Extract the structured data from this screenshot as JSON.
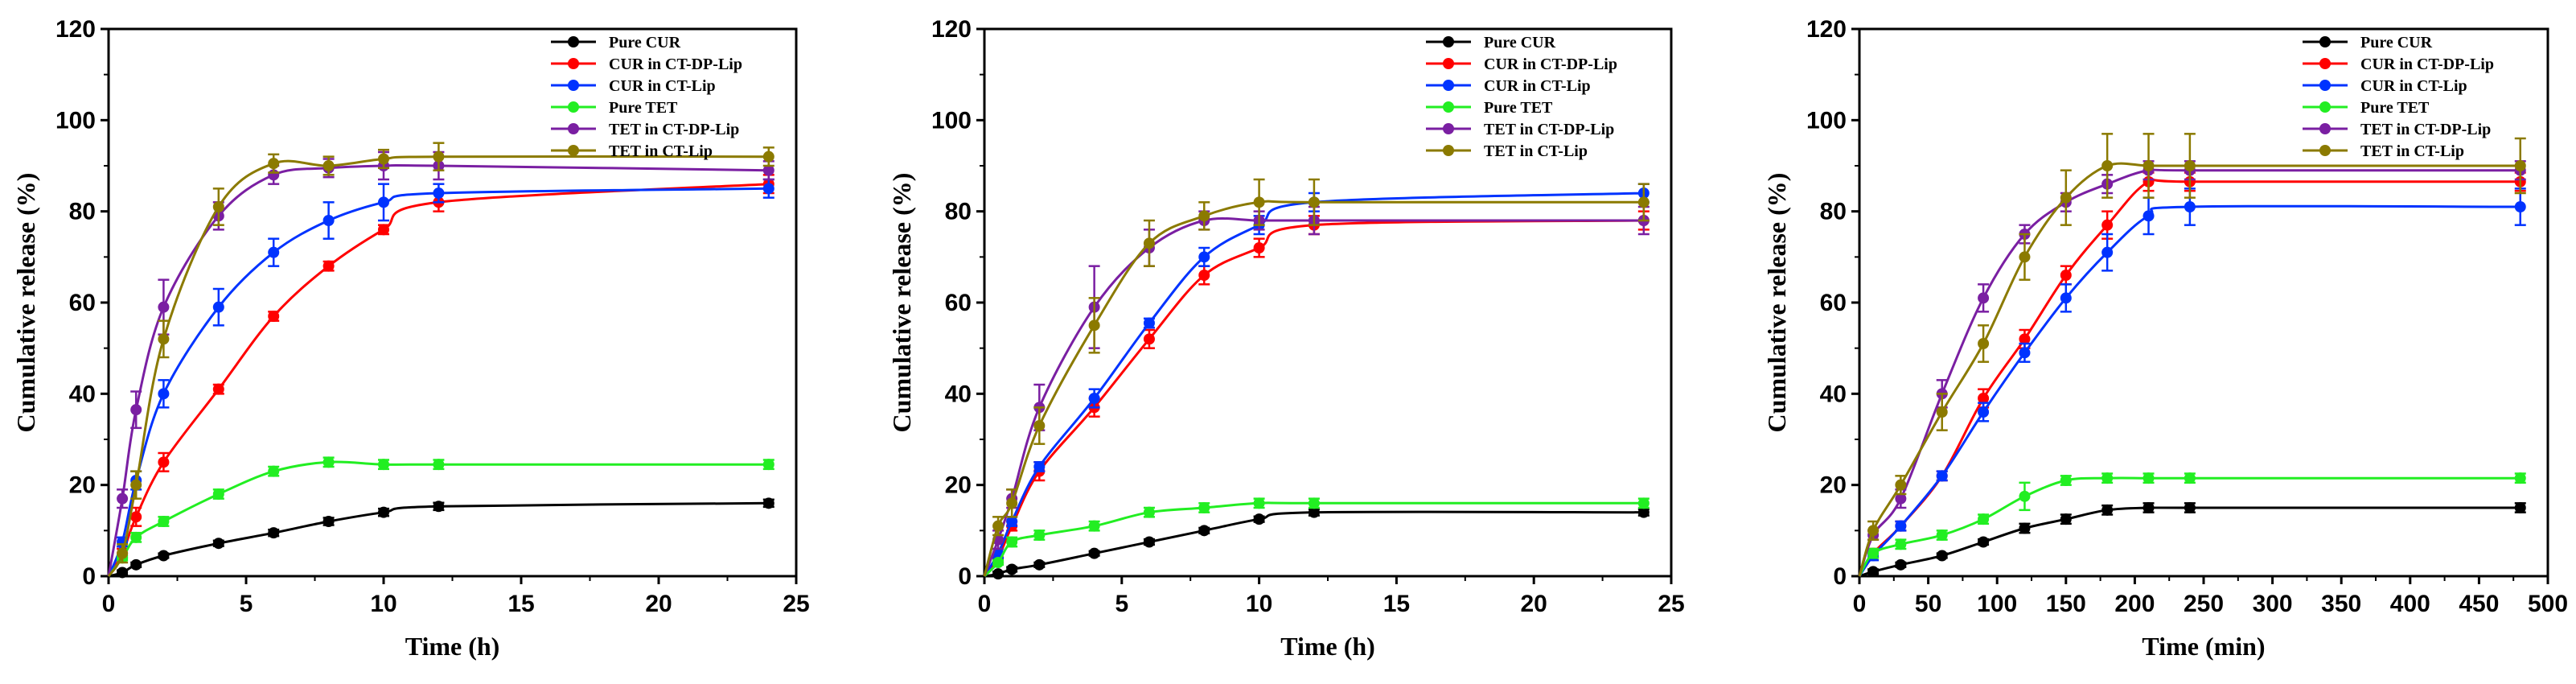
{
  "chart_data": [
    {
      "type": "line",
      "xlabel": "Time (h)",
      "ylabel": "Cumulative release (%)",
      "xlim": [
        0,
        25
      ],
      "ylim": [
        0,
        120
      ],
      "xticks": [
        0,
        5,
        10,
        15,
        20,
        25
      ],
      "xtick_labels": [
        "0",
        "5",
        "10",
        "15",
        "20",
        "25"
      ],
      "yticks": [
        0,
        20,
        40,
        60,
        80,
        100,
        120
      ],
      "ytick_labels": [
        "0",
        "20",
        "40",
        "60",
        "80",
        "100",
        "120"
      ],
      "legend_position": "top-right",
      "x": [
        0.5,
        1,
        2,
        4,
        6,
        8,
        10,
        12,
        24
      ],
      "series": [
        {
          "name": "Pure CUR",
          "color": "#000000",
          "values": [
            0.8,
            2.5,
            4.5,
            7.2,
            9.5,
            12,
            14,
            15.3,
            16
          ],
          "errors": [
            0.5,
            0.5,
            0.5,
            0.6,
            0.7,
            0.8,
            0.8,
            0.8,
            0.8
          ]
        },
        {
          "name": "CUR in CT-DP-Lip",
          "color": "#ff0000",
          "values": [
            5,
            13,
            25,
            41,
            57,
            68,
            76,
            82,
            86
          ],
          "errors": [
            1,
            2,
            2,
            1,
            1,
            1,
            1,
            2,
            2
          ]
        },
        {
          "name": "CUR in CT-Lip",
          "color": "#0033ff",
          "values": [
            7.5,
            21,
            40,
            59,
            71,
            78,
            82,
            84,
            85
          ],
          "errors": [
            1,
            2,
            3,
            4,
            3,
            4,
            4,
            2,
            2
          ]
        },
        {
          "name": "Pure TET",
          "color": "#22ee22",
          "values": [
            4,
            8.5,
            12,
            18,
            23,
            25,
            24.5,
            24.5,
            24.5
          ],
          "errors": [
            0.5,
            1,
            1,
            1,
            1,
            1,
            1,
            1,
            1
          ]
        },
        {
          "name": "TET in CT-DP-Lip",
          "color": "#7a1fa2",
          "values": [
            17,
            36.5,
            59,
            79,
            88,
            89.5,
            90,
            90,
            89
          ],
          "errors": [
            2,
            4,
            6,
            3,
            2,
            2,
            3,
            3,
            2
          ]
        },
        {
          "name": "TET in CT-Lip",
          "color": "#8b7a00",
          "values": [
            5,
            20,
            52,
            81,
            90.5,
            90,
            91.5,
            92,
            92
          ],
          "errors": [
            2,
            3,
            4,
            4,
            2,
            2,
            2,
            3,
            2
          ]
        }
      ]
    },
    {
      "type": "line",
      "xlabel": "Time (h)",
      "ylabel": "Cumulative release (%)",
      "xlim": [
        0,
        25
      ],
      "ylim": [
        0,
        120
      ],
      "xticks": [
        0,
        5,
        10,
        15,
        20,
        25
      ],
      "xtick_labels": [
        "0",
        "5",
        "10",
        "15",
        "20",
        "25"
      ],
      "yticks": [
        0,
        20,
        40,
        60,
        80,
        100,
        120
      ],
      "ytick_labels": [
        "0",
        "20",
        "40",
        "60",
        "80",
        "100",
        "120"
      ],
      "legend_position": "top-right",
      "x": [
        0.5,
        1,
        2,
        4,
        6,
        8,
        10,
        12,
        24
      ],
      "series": [
        {
          "name": "Pure CUR",
          "color": "#000000",
          "values": [
            0.5,
            1.5,
            2.5,
            5,
            7.5,
            10,
            12.5,
            14,
            14
          ],
          "errors": [
            0.5,
            0.5,
            0.5,
            0.5,
            0.6,
            0.6,
            0.6,
            0.7,
            0.7
          ]
        },
        {
          "name": "CUR in CT-DP-Lip",
          "color": "#ff0000",
          "values": [
            4,
            11,
            23,
            37,
            52,
            66,
            72,
            77,
            78
          ],
          "errors": [
            1,
            1,
            2,
            2,
            2,
            2,
            2,
            2,
            2
          ]
        },
        {
          "name": "CUR in CT-Lip",
          "color": "#0033ff",
          "values": [
            5,
            12,
            24,
            39,
            55.5,
            70,
            77,
            82,
            84
          ],
          "errors": [
            1,
            1,
            1,
            2,
            1,
            2,
            2,
            2,
            2
          ]
        },
        {
          "name": "Pure TET",
          "color": "#22ee22",
          "values": [
            3,
            7.5,
            9,
            11,
            14,
            15,
            16,
            16,
            16
          ],
          "errors": [
            0.5,
            1,
            1,
            1,
            1,
            1,
            1,
            1,
            1
          ]
        },
        {
          "name": "TET in CT-DP-Lip",
          "color": "#7a1fa2",
          "values": [
            8,
            17,
            37,
            59,
            72,
            78,
            78,
            78,
            78
          ],
          "errors": [
            2,
            2,
            5,
            9,
            4,
            2,
            2,
            3,
            3
          ]
        },
        {
          "name": "TET in CT-Lip",
          "color": "#8b7a00",
          "values": [
            11,
            16,
            33,
            55,
            73,
            79,
            82,
            82,
            82
          ],
          "errors": [
            2,
            3,
            4,
            6,
            5,
            3,
            5,
            5,
            4
          ]
        }
      ]
    },
    {
      "type": "line",
      "xlabel": "Time (min)",
      "ylabel": "Cumulative release (%)",
      "xlim": [
        0,
        500
      ],
      "ylim": [
        0,
        120
      ],
      "xticks": [
        0,
        50,
        100,
        150,
        200,
        250,
        300,
        350,
        400,
        450,
        500
      ],
      "xtick_labels": [
        "0",
        "50",
        "100",
        "150",
        "200",
        "250",
        "300",
        "350",
        "400",
        "450",
        "500"
      ],
      "yticks": [
        0,
        20,
        40,
        60,
        80,
        100,
        120
      ],
      "ytick_labels": [
        "0",
        "20",
        "40",
        "60",
        "80",
        "100",
        "120"
      ],
      "legend_position": "top-right",
      "x": [
        10,
        30,
        60,
        90,
        120,
        150,
        180,
        210,
        240,
        480
      ],
      "series": [
        {
          "name": "Pure CUR",
          "color": "#000000",
          "values": [
            1,
            2.5,
            4.5,
            7.5,
            10.5,
            12.5,
            14.5,
            15,
            15,
            15
          ],
          "errors": [
            0.5,
            0.5,
            0.5,
            0.6,
            1,
            1,
            1,
            1,
            1,
            1
          ]
        },
        {
          "name": "CUR in CT-DP-Lip",
          "color": "#ff0000",
          "values": [
            5,
            11,
            22,
            39,
            52,
            66,
            77,
            86.5,
            86.5,
            86.5
          ],
          "errors": [
            1,
            1,
            1,
            2,
            2,
            2,
            3,
            2,
            2,
            2
          ]
        },
        {
          "name": "CUR in CT-Lip",
          "color": "#0033ff",
          "values": [
            4.5,
            11,
            22,
            36,
            49,
            61,
            71,
            79,
            81,
            81
          ],
          "errors": [
            1,
            1,
            1,
            2,
            2,
            3,
            4,
            4,
            4,
            4
          ]
        },
        {
          "name": "Pure TET",
          "color": "#22ee22",
          "values": [
            5,
            7,
            9,
            12.5,
            17.5,
            21,
            21.5,
            21.5,
            21.5,
            21.5
          ],
          "errors": [
            1,
            1,
            1,
            1,
            3,
            1,
            1,
            1,
            1,
            1
          ]
        },
        {
          "name": "TET in CT-DP-Lip",
          "color": "#7a1fa2",
          "values": [
            9,
            17,
            40,
            61,
            75,
            82,
            86,
            89,
            89,
            89
          ],
          "errors": [
            1,
            2,
            3,
            3,
            2,
            2,
            2,
            2,
            2,
            2
          ]
        },
        {
          "name": "TET in CT-Lip",
          "color": "#8b7a00",
          "values": [
            10,
            20,
            36,
            51,
            70,
            83,
            90,
            90,
            90,
            90
          ],
          "errors": [
            2,
            2,
            4,
            4,
            5,
            6,
            7,
            7,
            7,
            6
          ]
        }
      ]
    }
  ]
}
